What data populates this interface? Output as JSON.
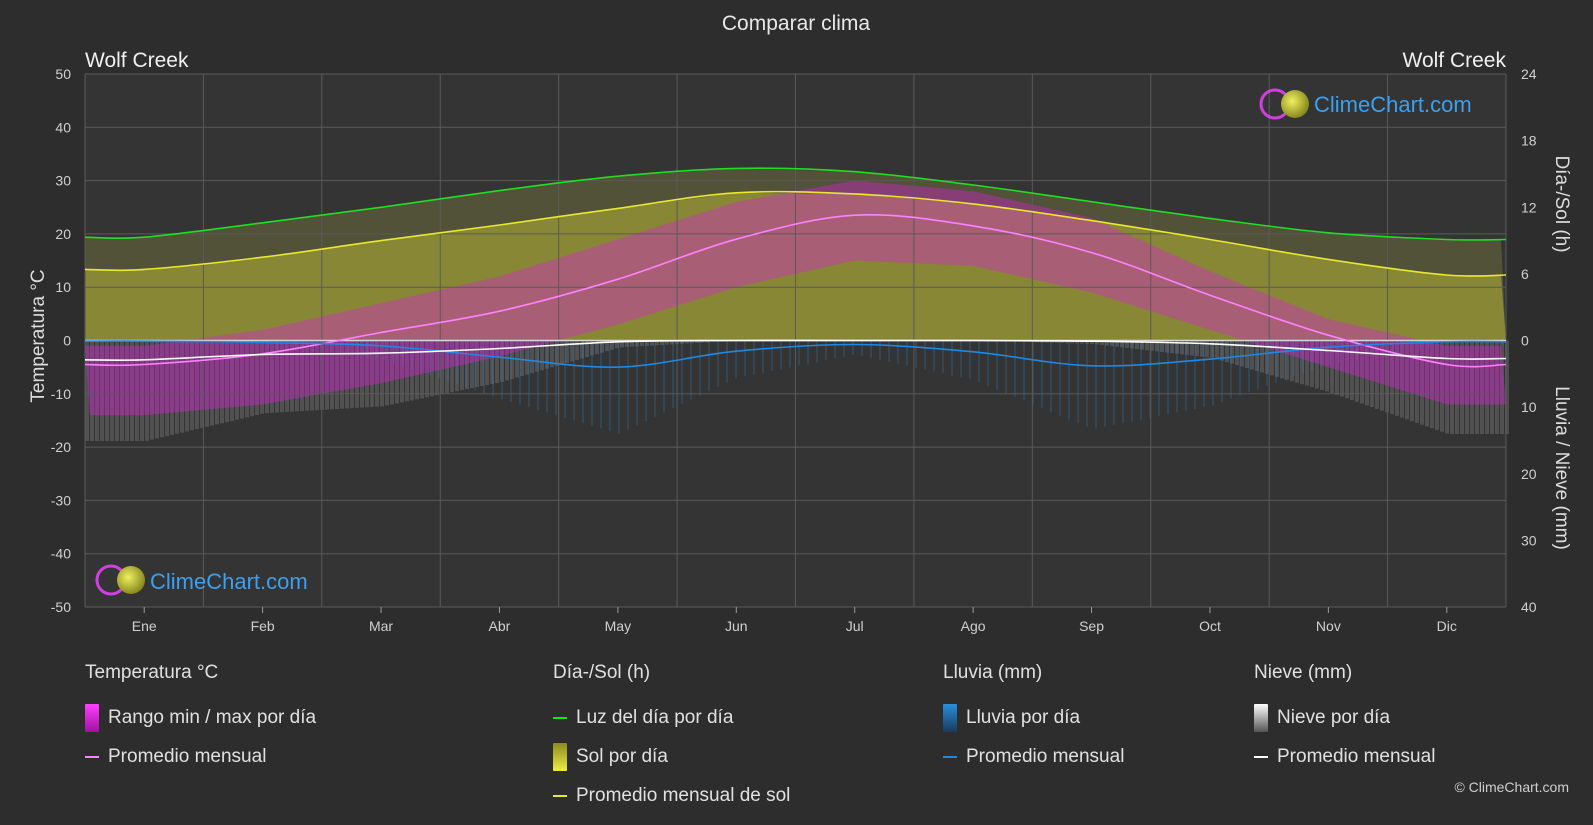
{
  "title": "Comparar clima",
  "location_left": "Wolf Creek",
  "location_right": "Wolf Creek",
  "watermark": "ClimeChart.com",
  "copyright": "© ClimeChart.com",
  "axes": {
    "left_label": "Temperatura °C",
    "right_top_label": "Día-/Sol (h)",
    "right_bottom_label": "Lluvia / Nieve (mm)"
  },
  "colors": {
    "background": "#2d2d2d",
    "temp_range": "#e020e0",
    "temp_avg": "#ff80ff",
    "daylight": "#22dd22",
    "sunshine_fill": "#c8c832",
    "sunshine_avg": "#e8e830",
    "rain": "#2a8fdc",
    "rain_avg": "#1e88e5",
    "snow": "#c8c8c8",
    "snow_avg": "#ffffff",
    "watermark_text": "#3aa0f0"
  },
  "legend": {
    "temperature": {
      "title": "Temperatura °C",
      "range_label": "Rango min / max por día",
      "avg_label": "Promedio mensual"
    },
    "sun": {
      "title": "Día-/Sol (h)",
      "daylight_label": "Luz del día por día",
      "sunshine_label": "Sol por día",
      "sunshine_avg_label": "Promedio mensual de sol"
    },
    "rain": {
      "title": "Lluvia (mm)",
      "rain_label": "Lluvia por día",
      "avg_label": "Promedio mensual"
    },
    "snow": {
      "title": "Nieve (mm)",
      "snow_label": "Nieve por día",
      "avg_label": "Promedio mensual"
    }
  },
  "chart_data": {
    "type": "line",
    "title": "Comparar clima",
    "categories": [
      "Ene",
      "Feb",
      "Mar",
      "Abr",
      "May",
      "Jun",
      "Jul",
      "Ago",
      "Sep",
      "Oct",
      "Nov",
      "Dic"
    ],
    "y_left": {
      "label": "Temperatura °C",
      "range": [
        -50,
        50
      ],
      "ticks": [
        50,
        40,
        30,
        20,
        10,
        0,
        -10,
        -20,
        -30,
        -40,
        -50
      ]
    },
    "y_right_top": {
      "label": "Día-/Sol (h)",
      "range": [
        0,
        24
      ],
      "ticks": [
        24,
        18,
        12,
        6,
        0
      ]
    },
    "y_right_bottom": {
      "label": "Lluvia / Nieve (mm)",
      "range": [
        0,
        40
      ],
      "ticks": [
        0,
        10,
        20,
        30,
        40
      ]
    },
    "grid": true,
    "series": [
      {
        "name": "Luz del día por día",
        "axis": "hours",
        "values": [
          9.3,
          10.6,
          12.0,
          13.5,
          14.8,
          15.5,
          15.2,
          14.0,
          12.5,
          11.0,
          9.7,
          9.1
        ]
      },
      {
        "name": "Promedio mensual de sol",
        "axis": "hours",
        "values": [
          6.4,
          7.5,
          9.0,
          10.4,
          11.9,
          13.3,
          13.2,
          12.3,
          10.8,
          9.1,
          7.3,
          5.9
        ]
      },
      {
        "name": "Temperatura promedio mensual",
        "axis": "temperature",
        "values": [
          -4.5,
          -2.5,
          1.5,
          5.5,
          11.5,
          19.0,
          23.5,
          21.5,
          16.5,
          8.5,
          1.0,
          -4.5
        ]
      },
      {
        "name": "Temperatura max diaria",
        "axis": "temperature",
        "values": [
          -1,
          2,
          7,
          12,
          19,
          26,
          30,
          28,
          23,
          13,
          4,
          -1
        ]
      },
      {
        "name": "Temperatura min diaria",
        "axis": "temperature",
        "values": [
          -14,
          -12,
          -8,
          -3,
          3,
          10,
          15,
          14,
          9,
          2,
          -5,
          -12
        ]
      },
      {
        "name": "Lluvia promedio mensual",
        "axis": "precip",
        "values": [
          0.1,
          0.3,
          0.8,
          2.5,
          4.0,
          1.6,
          0.6,
          1.7,
          3.8,
          2.8,
          1.0,
          0.2
        ]
      },
      {
        "name": "Nieve promedio mensual",
        "axis": "precip",
        "values": [
          2.9,
          2.1,
          1.9,
          1.2,
          0.2,
          0.0,
          0.0,
          0.0,
          0.1,
          0.5,
          1.5,
          2.7
        ]
      }
    ]
  }
}
